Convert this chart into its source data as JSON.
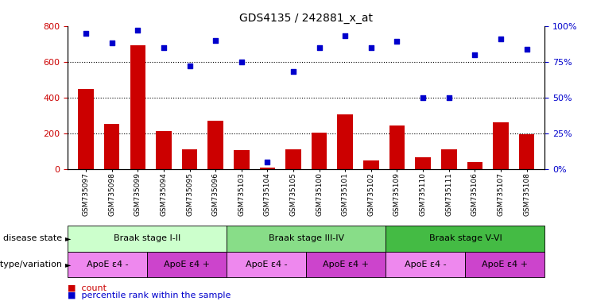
{
  "title": "GDS4135 / 242881_x_at",
  "samples": [
    "GSM735097",
    "GSM735098",
    "GSM735099",
    "GSM735094",
    "GSM735095",
    "GSM735096",
    "GSM735103",
    "GSM735104",
    "GSM735105",
    "GSM735100",
    "GSM735101",
    "GSM735102",
    "GSM735109",
    "GSM735110",
    "GSM735111",
    "GSM735106",
    "GSM735107",
    "GSM735108"
  ],
  "counts": [
    450,
    255,
    690,
    215,
    110,
    270,
    105,
    10,
    110,
    205,
    305,
    50,
    245,
    65,
    110,
    40,
    260,
    195
  ],
  "percentiles": [
    95,
    88,
    97,
    85,
    72,
    90,
    75,
    5,
    68,
    85,
    93,
    85,
    89,
    50,
    50,
    80,
    91,
    84
  ],
  "ylim_left": [
    0,
    800
  ],
  "ylim_right": [
    0,
    100
  ],
  "yticks_left": [
    0,
    200,
    400,
    600,
    800
  ],
  "yticks_right": [
    0,
    25,
    50,
    75,
    100
  ],
  "bar_color": "#cc0000",
  "dot_color": "#0000cc",
  "disease_stages": [
    {
      "label": "Braak stage I-II",
      "start": 0,
      "end": 6,
      "color": "#ccffcc"
    },
    {
      "label": "Braak stage III-IV",
      "start": 6,
      "end": 12,
      "color": "#88dd88"
    },
    {
      "label": "Braak stage V-VI",
      "start": 12,
      "end": 18,
      "color": "#44bb44"
    }
  ],
  "genotype_groups": [
    {
      "label": "ApoE ε4 -",
      "start": 0,
      "end": 3,
      "color": "#ee88ee"
    },
    {
      "label": "ApoE ε4 +",
      "start": 3,
      "end": 6,
      "color": "#cc44cc"
    },
    {
      "label": "ApoE ε4 -",
      "start": 6,
      "end": 9,
      "color": "#ee88ee"
    },
    {
      "label": "ApoE ε4 +",
      "start": 9,
      "end": 12,
      "color": "#cc44cc"
    },
    {
      "label": "ApoE ε4 -",
      "start": 12,
      "end": 15,
      "color": "#ee88ee"
    },
    {
      "label": "ApoE ε4 +",
      "start": 15,
      "end": 18,
      "color": "#cc44cc"
    }
  ],
  "disease_state_label": "disease state",
  "genotype_label": "genotype/variation",
  "legend_count": "count",
  "legend_percentile": "percentile rank within the sample",
  "tick_label_color_left": "#cc0000",
  "tick_label_color_right": "#0000cc",
  "xtick_bg_color": "#cccccc",
  "grid_yticks": [
    200,
    400,
    600
  ]
}
